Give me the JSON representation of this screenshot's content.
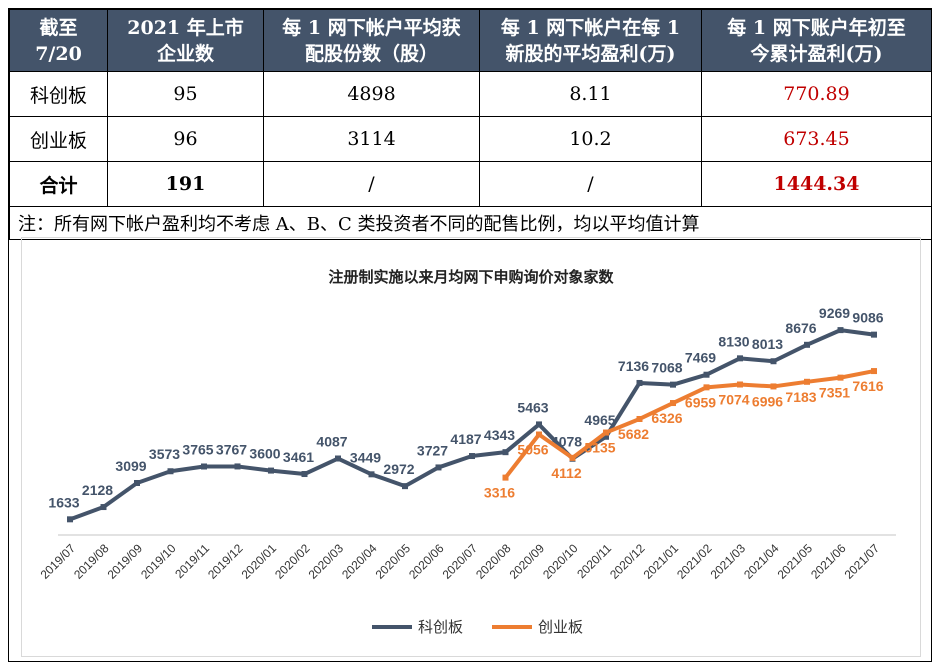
{
  "table": {
    "headers": [
      "截至\n7/20",
      "2021 年上市\n企业数",
      "每 1 网下帐户平均获\n配股份数（股）",
      "每 1 网下帐户在每 1\n新股的平均盈利(万)",
      "每 1 网下账户年初至\n今累计盈利(万)"
    ],
    "rows": [
      [
        "科创板",
        "95",
        "4898",
        "8.11",
        "770.89"
      ],
      [
        "创业板",
        "96",
        "3114",
        "10.2",
        "673.45"
      ],
      [
        "合计",
        "191",
        "/",
        "/",
        "1444.34"
      ]
    ],
    "note": "注：所有网下帐户盈利均不考虑 A、B、C 类投资者不同的配售比例，均以平均值计算"
  },
  "chart_data": {
    "type": "line",
    "title": "注册制实施以来月均网下申购询价对象家数",
    "categories": [
      "2019/07",
      "2019/08",
      "2019/09",
      "2019/10",
      "2019/11",
      "2019/12",
      "2020/01",
      "2020/02",
      "2020/03",
      "2020/04",
      "2020/05",
      "2020/06",
      "2020/07",
      "2020/08",
      "2020/09",
      "2020/10",
      "2020/11",
      "2020/12",
      "2021/01",
      "2021/02",
      "2021/03",
      "2021/04",
      "2021/05",
      "2021/06",
      "2021/07"
    ],
    "ylim": [
      1000,
      10000
    ],
    "grid": false,
    "legend": "bottom",
    "series": [
      {
        "name": "科创板",
        "color": "#44546a",
        "values": [
          1633,
          2128,
          3099,
          3573,
          3765,
          3767,
          3600,
          3461,
          4087,
          3449,
          2972,
          3727,
          4187,
          4343,
          5463,
          4078,
          4965,
          7136,
          7068,
          7469,
          8130,
          8013,
          8676,
          9269,
          9086
        ]
      },
      {
        "name": "创业板",
        "color": "#ed7d31",
        "values": [
          null,
          null,
          null,
          null,
          null,
          null,
          null,
          null,
          null,
          null,
          null,
          null,
          null,
          3316,
          5056,
          4112,
          5135,
          5682,
          6326,
          6959,
          7074,
          6996,
          7183,
          7351,
          7616
        ]
      }
    ]
  }
}
